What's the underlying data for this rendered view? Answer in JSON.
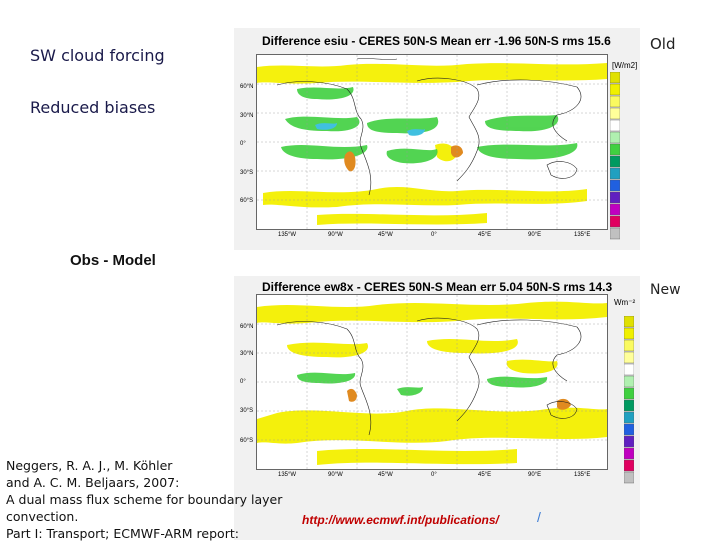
{
  "labels": {
    "sw_cloud_forcing": "SW cloud forcing",
    "reduced_biases": "Reduced biases",
    "old": "Old",
    "new": "New",
    "obs_model": "Obs - Model"
  },
  "panels": [
    {
      "title": "Difference esiu - CERES  50N-S Mean err -1.96 50N-S rms 15.6",
      "unit": "[W/m2]",
      "lat_labels": [
        "60°N",
        "30°N",
        "0°",
        "30°S",
        "60°S"
      ],
      "lon_labels": [
        "135°W",
        "90°W",
        "45°W",
        "0°",
        "45°E",
        "90°E",
        "135°E"
      ]
    },
    {
      "title": "Difference ew8x - CERES  50N-S Mean err 5.04 50N-S rms 14.3",
      "unit": "Wm⁻²",
      "lat_labels": [
        "60°N",
        "30°N",
        "0°",
        "30°S",
        "60°S"
      ],
      "lon_labels": [
        "135°W",
        "90°W",
        "45°W",
        "0°",
        "45°E",
        "90°E",
        "135°E"
      ]
    }
  ],
  "colorbar_colors": [
    "#e0e000",
    "#f0f000",
    "#fafa60",
    "#ffff9a",
    "#ffffff",
    "#b0f0b0",
    "#40d040",
    "#009a60",
    "#20a0c0",
    "#2060e0",
    "#6020c0",
    "#c000c0",
    "#e00060",
    "#c0c0c0"
  ],
  "colors": {
    "green": "#40d040",
    "yellow": "#f4f000",
    "orange": "#e08a20",
    "red": "#d04040",
    "cyan": "#40c0e0"
  },
  "citation": {
    "line1": "Neggers, R. A. J., M. Köhler",
    "line2": "and A. C. M. Beljaars, 2007:",
    "line3": "A dual mass flux scheme for boundary layer",
    "line4": "convection.",
    "line5": "Part I: Transport; ECMWF-ARM report:"
  },
  "url": "http://www.ecmwf.int/publications/",
  "url_slash": "/"
}
